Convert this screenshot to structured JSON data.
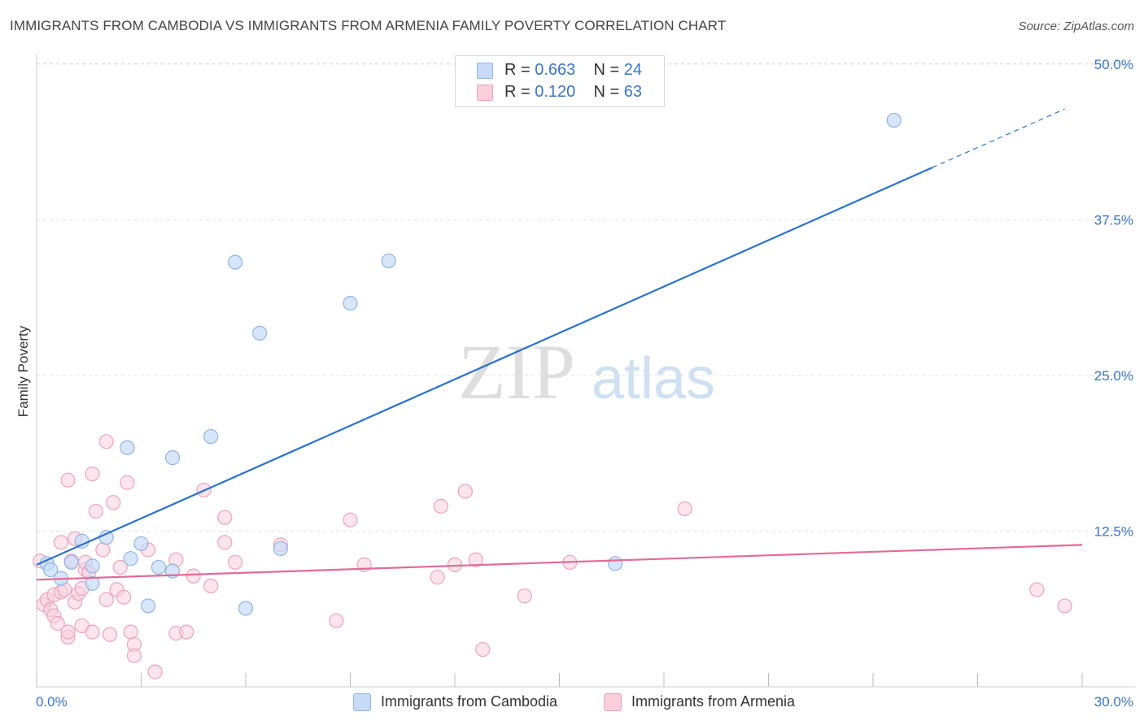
{
  "header": {
    "title": "IMMIGRANTS FROM CAMBODIA VS IMMIGRANTS FROM ARMENIA FAMILY POVERTY CORRELATION CHART",
    "source": "Source: ZipAtlas.com"
  },
  "watermark": {
    "zip": "ZIP",
    "atlas": "atlas"
  },
  "legend": {
    "items": [
      {
        "r_label": "R =",
        "r_value": "0.663",
        "n_label": "N =",
        "n_value": "24"
      },
      {
        "r_label": "R =",
        "r_value": "0.120",
        "n_label": "N =",
        "n_value": "63"
      }
    ]
  },
  "bottom_legend": {
    "cambodia": "Immigrants from Cambodia",
    "armenia": "Immigrants from Armenia"
  },
  "colors": {
    "cambodia_fill": "#c7dbf6",
    "cambodia_stroke": "#8fb5e6",
    "cambodia_line": "#2a72d0",
    "armenia_fill": "#f9cfdc",
    "armenia_stroke": "#eda3bb",
    "armenia_line": "#e36a95",
    "axis_label": "#3a76c8",
    "grid": "#e3e3e3"
  },
  "chart_data": {
    "type": "scatter",
    "title": "IMMIGRANTS FROM CAMBODIA VS IMMIGRANTS FROM ARMENIA FAMILY POVERTY CORRELATION CHART",
    "xlabel": "",
    "ylabel": "Family Poverty",
    "xlim": [
      0,
      30
    ],
    "ylim": [
      0,
      50
    ],
    "x_tick_labels": [
      "0.0%",
      "30.0%"
    ],
    "y_ticks": [
      12.5,
      25.0,
      37.5,
      50.0
    ],
    "y_tick_labels": [
      "12.5%",
      "25.0%",
      "37.5%",
      "50.0%"
    ],
    "grid": true,
    "series": [
      {
        "name": "Immigrants from Cambodia",
        "R": 0.663,
        "N": 24,
        "trend": {
          "x0": 0,
          "y0": 9.8,
          "x1": 25.7,
          "y1": 41.7,
          "dash_to_x": 29.5,
          "dash_to_y": 46.4
        },
        "points": [
          [
            0.3,
            9.9
          ],
          [
            0.4,
            9.4
          ],
          [
            0.7,
            8.7
          ],
          [
            1.0,
            10.0
          ],
          [
            1.3,
            11.7
          ],
          [
            1.6,
            9.7
          ],
          [
            1.6,
            8.3
          ],
          [
            2.0,
            12.0
          ],
          [
            2.6,
            19.2
          ],
          [
            2.7,
            10.3
          ],
          [
            3.0,
            11.5
          ],
          [
            3.2,
            6.5
          ],
          [
            3.5,
            9.6
          ],
          [
            3.9,
            9.3
          ],
          [
            3.9,
            18.4
          ],
          [
            5.0,
            20.1
          ],
          [
            5.7,
            34.1
          ],
          [
            6.0,
            6.3
          ],
          [
            6.4,
            28.4
          ],
          [
            7.0,
            11.1
          ],
          [
            9.0,
            30.8
          ],
          [
            10.1,
            34.2
          ],
          [
            16.6,
            9.9
          ],
          [
            24.6,
            45.5
          ]
        ]
      },
      {
        "name": "Immigrants from Armenia",
        "R": 0.12,
        "N": 63,
        "trend": {
          "x0": 0,
          "y0": 8.6,
          "x1": 30,
          "y1": 11.4
        },
        "points": [
          [
            0.1,
            10.1
          ],
          [
            0.2,
            6.6
          ],
          [
            0.3,
            7.0
          ],
          [
            0.4,
            6.2
          ],
          [
            0.5,
            7.4
          ],
          [
            0.5,
            5.7
          ],
          [
            0.6,
            5.1
          ],
          [
            0.7,
            7.6
          ],
          [
            0.7,
            11.6
          ],
          [
            0.8,
            7.8
          ],
          [
            0.9,
            4.0
          ],
          [
            0.9,
            4.4
          ],
          [
            0.9,
            16.6
          ],
          [
            1.0,
            10.1
          ],
          [
            1.1,
            11.9
          ],
          [
            1.1,
            6.8
          ],
          [
            1.2,
            7.5
          ],
          [
            1.3,
            7.9
          ],
          [
            1.3,
            4.9
          ],
          [
            1.4,
            9.4
          ],
          [
            1.4,
            10.0
          ],
          [
            1.5,
            9.2
          ],
          [
            1.6,
            17.1
          ],
          [
            1.6,
            4.4
          ],
          [
            1.7,
            14.1
          ],
          [
            1.9,
            11.0
          ],
          [
            2.0,
            7.0
          ],
          [
            2.0,
            19.7
          ],
          [
            2.1,
            4.2
          ],
          [
            2.2,
            14.8
          ],
          [
            2.3,
            7.8
          ],
          [
            2.4,
            9.6
          ],
          [
            2.5,
            7.2
          ],
          [
            2.6,
            16.4
          ],
          [
            2.7,
            4.4
          ],
          [
            2.8,
            3.4
          ],
          [
            2.8,
            2.5
          ],
          [
            3.2,
            11.0
          ],
          [
            3.4,
            1.2
          ],
          [
            4.0,
            10.2
          ],
          [
            4.0,
            4.3
          ],
          [
            4.3,
            4.4
          ],
          [
            4.5,
            8.9
          ],
          [
            4.8,
            15.8
          ],
          [
            5.0,
            8.1
          ],
          [
            5.4,
            13.6
          ],
          [
            5.4,
            11.6
          ],
          [
            5.7,
            10.0
          ],
          [
            7.0,
            11.4
          ],
          [
            8.6,
            5.3
          ],
          [
            9.0,
            13.4
          ],
          [
            9.4,
            9.8
          ],
          [
            11.5,
            8.8
          ],
          [
            11.6,
            14.5
          ],
          [
            12.0,
            9.8
          ],
          [
            12.3,
            15.7
          ],
          [
            12.6,
            10.2
          ],
          [
            12.8,
            3.0
          ],
          [
            14.0,
            7.3
          ],
          [
            15.3,
            10.0
          ],
          [
            18.6,
            14.3
          ],
          [
            28.7,
            7.8
          ],
          [
            29.5,
            6.5
          ]
        ]
      }
    ]
  }
}
